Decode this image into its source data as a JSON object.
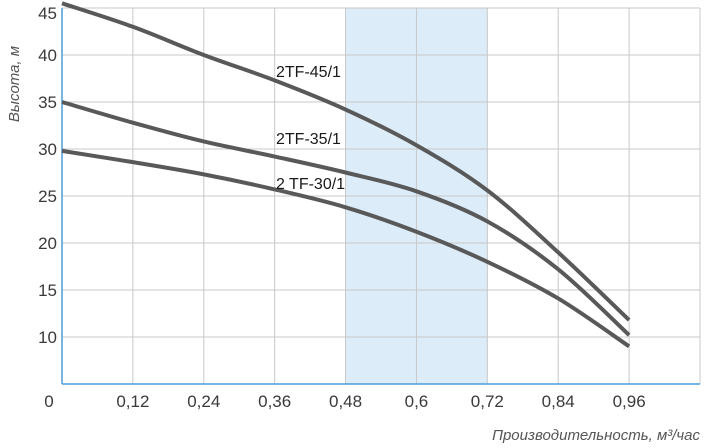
{
  "chart_data": {
    "type": "line",
    "xlabel": "Производительность, м³/час",
    "ylabel": "Высота, м",
    "x_ticks": [
      "0",
      "0,12",
      "0,24",
      "0,36",
      "0,48",
      "0,6",
      "0,72",
      "0,84",
      "0,96"
    ],
    "y_ticks": [
      "10",
      "15",
      "20",
      "25",
      "30",
      "35",
      "40",
      "45"
    ],
    "xlim": [
      0,
      1.08
    ],
    "ylim": [
      5,
      45
    ],
    "grid": true,
    "highlight_range": [
      0.48,
      0.72
    ],
    "series": [
      {
        "name": "2TF-45/1",
        "x": [
          0,
          0.12,
          0.24,
          0.36,
          0.48,
          0.6,
          0.72,
          0.84,
          0.96
        ],
        "y": [
          45.5,
          43.0,
          40.0,
          37.3,
          34.2,
          30.4,
          25.6,
          19.0,
          11.8
        ]
      },
      {
        "name": "2TF-35/1",
        "x": [
          0,
          0.12,
          0.24,
          0.36,
          0.48,
          0.6,
          0.72,
          0.84,
          0.96
        ],
        "y": [
          35.0,
          32.8,
          30.8,
          29.2,
          27.5,
          25.5,
          22.3,
          17.2,
          10.2
        ]
      },
      {
        "name": "2 TF-30/1",
        "x": [
          0,
          0.12,
          0.24,
          0.36,
          0.48,
          0.6,
          0.72,
          0.84,
          0.96
        ],
        "y": [
          29.8,
          28.6,
          27.3,
          25.7,
          23.8,
          21.2,
          18.0,
          14.1,
          9.0
        ]
      }
    ],
    "colors": {
      "line": "#595959",
      "grid": "#c8c8c8",
      "axis": "#4a9ed8",
      "highlight": "#dcecf9"
    }
  }
}
